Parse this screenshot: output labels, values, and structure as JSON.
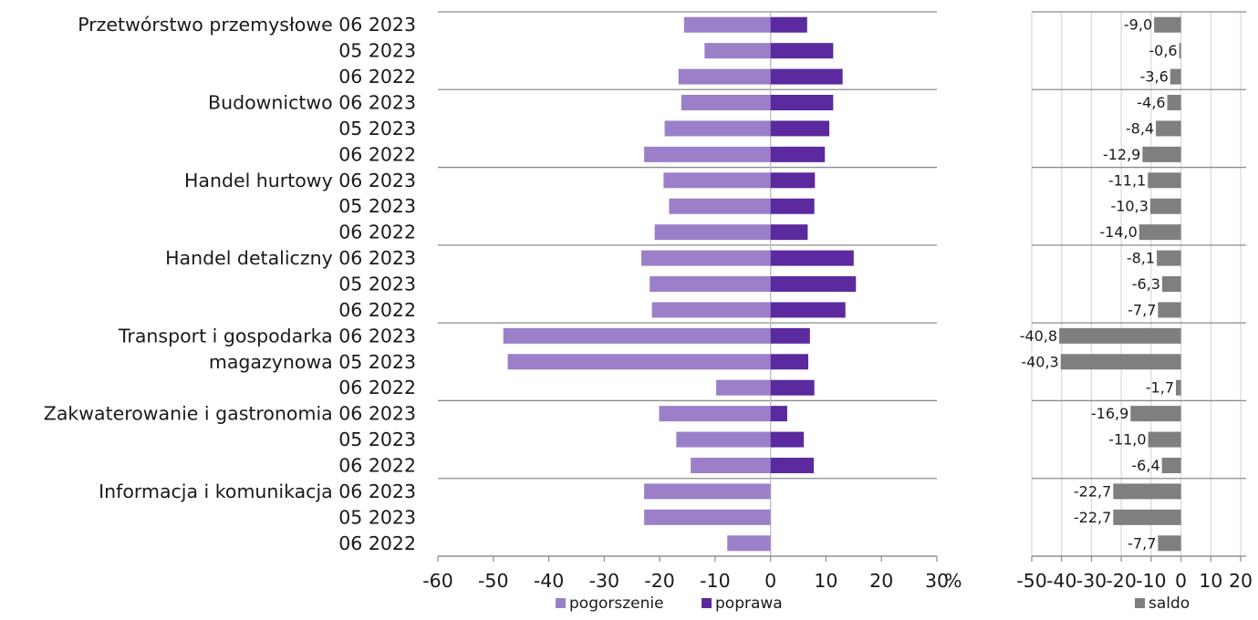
{
  "chart_data": [
    {
      "type": "bar",
      "orientation": "horizontal",
      "stacked": "diverging",
      "categories": [
        "Przetwórstwo przemysłowe 06 2023",
        "05 2023",
        "06 2022",
        "Budownictwo 06 2023",
        "05 2023",
        "06 2022",
        "Handel hurtowy 06 2023",
        "05 2023",
        "06 2022",
        "Handel detaliczny 06 2023",
        "05 2023",
        "06 2022",
        "Transport i gospodarka 06 2023",
        "magazynowa 05 2023",
        "06 2022",
        "Zakwaterowanie i gastronomia 06 2023",
        "05 2023",
        "06 2022",
        "Informacja i komunikacja 06 2023",
        "05 2023",
        "06 2022"
      ],
      "series": [
        {
          "name": "pogorszenie",
          "color": "#9b7fc8",
          "values": [
            -15.6,
            -11.9,
            -16.6,
            -16.1,
            -19.1,
            -22.8,
            -19.3,
            -18.3,
            -20.9,
            -23.3,
            -21.8,
            -21.4,
            -48.2,
            -47.4,
            -9.8,
            -20.1,
            -17.0,
            -14.4,
            -22.8,
            -22.8,
            -7.8
          ]
        },
        {
          "name": "poprawa",
          "color": "#5a2a9e",
          "values": [
            6.6,
            11.3,
            13.0,
            11.3,
            10.6,
            9.8,
            8.0,
            7.9,
            6.7,
            15.0,
            15.4,
            13.5,
            7.1,
            6.8,
            7.9,
            3.0,
            6.0,
            7.8,
            0,
            0,
            0
          ]
        }
      ],
      "xlim": [
        -60,
        30
      ],
      "xticks": [
        -60,
        -50,
        -40,
        -30,
        -20,
        -10,
        0,
        10,
        20,
        30
      ],
      "xtick_labels": [
        "-60",
        "-50",
        "-40",
        "-30",
        "-20",
        "-10",
        "0",
        "10",
        "20",
        "30"
      ],
      "x_unit": "%",
      "grid": false,
      "legend_position": "bottom"
    },
    {
      "type": "bar",
      "orientation": "horizontal",
      "series": [
        {
          "name": "saldo",
          "color": "#7f7f7f",
          "values": [
            -9.0,
            -0.6,
            -3.6,
            -4.6,
            -8.4,
            -12.9,
            -11.1,
            -10.3,
            -14.0,
            -8.1,
            -6.3,
            -7.7,
            -40.8,
            -40.3,
            -1.7,
            -16.9,
            -11.0,
            -6.4,
            -22.7,
            -22.7,
            -7.7
          ],
          "value_labels": [
            "-9,0",
            "-0,6",
            "-3,6",
            "-4,6",
            "-8,4",
            "-12,9",
            "-11,1",
            "-10,3",
            "-14,0",
            "-8,1",
            "-6,3",
            "-7,7",
            "-40,8",
            "-40,3",
            "-1,7",
            "-16,9",
            "-11,0",
            "-6,4",
            "-22,7",
            "-22,7",
            "-7,7"
          ]
        }
      ],
      "xlim": [
        -50,
        20
      ],
      "xticks": [
        -50,
        -40,
        -30,
        -20,
        -10,
        0,
        10,
        20
      ],
      "xtick_labels": [
        "-50",
        "-40",
        "-30",
        "-20",
        "-10",
        "0",
        "10",
        "20"
      ],
      "grid": true,
      "legend_position": "bottom"
    }
  ]
}
